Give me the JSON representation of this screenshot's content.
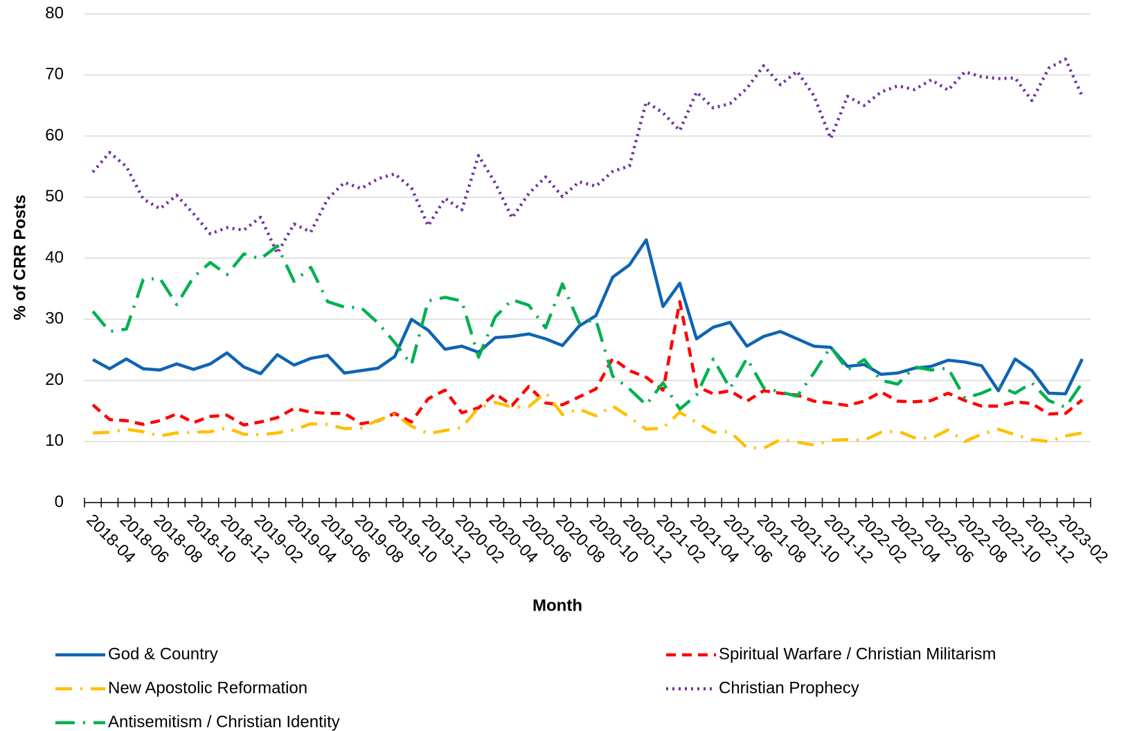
{
  "chart_data": {
    "type": "line",
    "x_label": "Month",
    "y_label": "% of CRR Posts",
    "categories": [
      "2018-04",
      null,
      "2018-06",
      null,
      "2018-08",
      null,
      "2018-10",
      null,
      "2018-12",
      null,
      "2019-02",
      null,
      "2019-04",
      null,
      "2019-06",
      null,
      "2019-08",
      null,
      "2019-10",
      null,
      "2019-12",
      null,
      "2020-02",
      null,
      "2020-04",
      null,
      "2020-06",
      null,
      "2020-08",
      null,
      "2020-10",
      null,
      "2020-12",
      null,
      "2021-02",
      null,
      "2021-04",
      null,
      "2021-06",
      null,
      "2021-08",
      null,
      "2021-10",
      null,
      "2021-12",
      null,
      "2022-02",
      null,
      "2022-04",
      null,
      "2022-06",
      null,
      "2022-08",
      null,
      "2022-10",
      null,
      "2022-12",
      null,
      "2023-02",
      null
    ],
    "series": [
      {
        "name": "God & Country",
        "color": "#0e64b4",
        "values": [
          23.4,
          21.9,
          23.5,
          21.9,
          21.7,
          22.7,
          21.8,
          22.7,
          24.5,
          22.2,
          21.1,
          24.2,
          22.5,
          23.6,
          24.1,
          21.2,
          21.6,
          22.0,
          23.9,
          30.0,
          28.2,
          25.1,
          25.6,
          24.6,
          27.0,
          27.2,
          27.6,
          26.8,
          25.7,
          28.9,
          30.6,
          36.9,
          38.9,
          43.0,
          32.1,
          35.9,
          26.8,
          28.7,
          29.5,
          25.6,
          27.2,
          28.0,
          26.8,
          25.6,
          25.4,
          22.3,
          22.6,
          21.0,
          21.2,
          22.0,
          22.3,
          23.3,
          23.0,
          22.4,
          18.3,
          23.5,
          21.6,
          17.9,
          17.8,
          23.5
        ]
      },
      {
        "name": "Spiritual Warfare / Christian Militarism",
        "color": "#ff0000",
        "values": [
          16.0,
          13.6,
          13.4,
          12.8,
          13.4,
          14.5,
          13.1,
          14.1,
          14.3,
          12.7,
          13.2,
          13.9,
          15.4,
          14.8,
          14.6,
          14.6,
          12.9,
          13.4,
          14.6,
          13.2,
          17.0,
          18.4,
          14.7,
          15.5,
          17.8,
          15.9,
          19.0,
          16.3,
          16.0,
          17.3,
          18.6,
          23.6,
          21.6,
          20.5,
          18.4,
          32.9,
          19.0,
          17.8,
          18.3,
          16.6,
          18.3,
          17.9,
          17.6,
          16.6,
          16.3,
          15.9,
          16.6,
          18.1,
          16.6,
          16.5,
          16.7,
          17.9,
          16.7,
          15.8,
          15.8,
          16.5,
          16.2,
          14.5,
          14.6,
          16.8
        ]
      },
      {
        "name": "New Apostolic Reformation",
        "color": "#ffc000",
        "values": [
          11.4,
          11.5,
          12.0,
          11.6,
          10.9,
          11.4,
          11.5,
          11.6,
          12.2,
          11.2,
          11.1,
          11.4,
          11.9,
          12.9,
          12.8,
          12.1,
          12.2,
          13.5,
          14.4,
          12.5,
          11.3,
          11.8,
          12.3,
          15.5,
          16.4,
          15.6,
          15.7,
          18.0,
          14.4,
          15.3,
          14.2,
          15.8,
          14.0,
          12.0,
          12.2,
          14.8,
          13.1,
          11.5,
          11.6,
          9.0,
          8.9,
          10.3,
          9.9,
          9.4,
          10.2,
          10.3,
          10.2,
          11.5,
          11.7,
          10.6,
          10.5,
          11.9,
          10.0,
          11.2,
          12.0,
          11.1,
          10.3,
          10.0,
          10.9,
          11.4
        ]
      },
      {
        "name": "Christian Prophecy",
        "color": "#7030a0",
        "values": [
          54.1,
          57.3,
          55.0,
          49.7,
          48.1,
          50.3,
          47.3,
          44.0,
          45.0,
          44.6,
          46.7,
          40.8,
          45.6,
          44.3,
          49.7,
          52.4,
          51.4,
          53.0,
          53.8,
          51.5,
          45.3,
          49.8,
          47.9,
          56.8,
          52.3,
          46.6,
          50.6,
          53.3,
          50.1,
          52.5,
          51.8,
          54.2,
          55.1,
          65.6,
          63.8,
          60.9,
          67.2,
          64.6,
          65.3,
          67.8,
          71.5,
          68.4,
          70.6,
          66.6,
          59.6,
          66.5,
          65.0,
          67.2,
          68.2,
          67.6,
          69.2,
          67.5,
          70.5,
          69.7,
          69.4,
          69.5,
          65.8,
          71.1,
          72.6,
          66.5
        ]
      },
      {
        "name": "Antisemitism / Christian Identity",
        "color": "#00b050",
        "values": [
          31.3,
          28.0,
          28.4,
          36.5,
          36.7,
          32.4,
          36.9,
          39.3,
          37.3,
          40.7,
          39.9,
          42.0,
          36.2,
          38.5,
          32.9,
          32.0,
          31.9,
          29.4,
          26.2,
          22.6,
          33.0,
          33.6,
          33.0,
          23.8,
          30.4,
          33.2,
          32.3,
          28.6,
          35.8,
          29.4,
          29.9,
          20.7,
          18.6,
          16.0,
          19.6,
          15.3,
          17.6,
          23.5,
          18.7,
          23.6,
          18.8,
          18.1,
          17.4,
          21.2,
          25.5,
          21.7,
          23.4,
          20.0,
          19.4,
          22.2,
          21.7,
          22.0,
          17.1,
          17.9,
          19.1,
          17.9,
          19.6,
          16.7,
          15.6,
          19.6
        ]
      }
    ],
    "ylim": [
      0,
      80
    ],
    "yticks": [
      0,
      10,
      20,
      30,
      40,
      50,
      60,
      70,
      80
    ],
    "grid": true,
    "legend": "bottom"
  }
}
